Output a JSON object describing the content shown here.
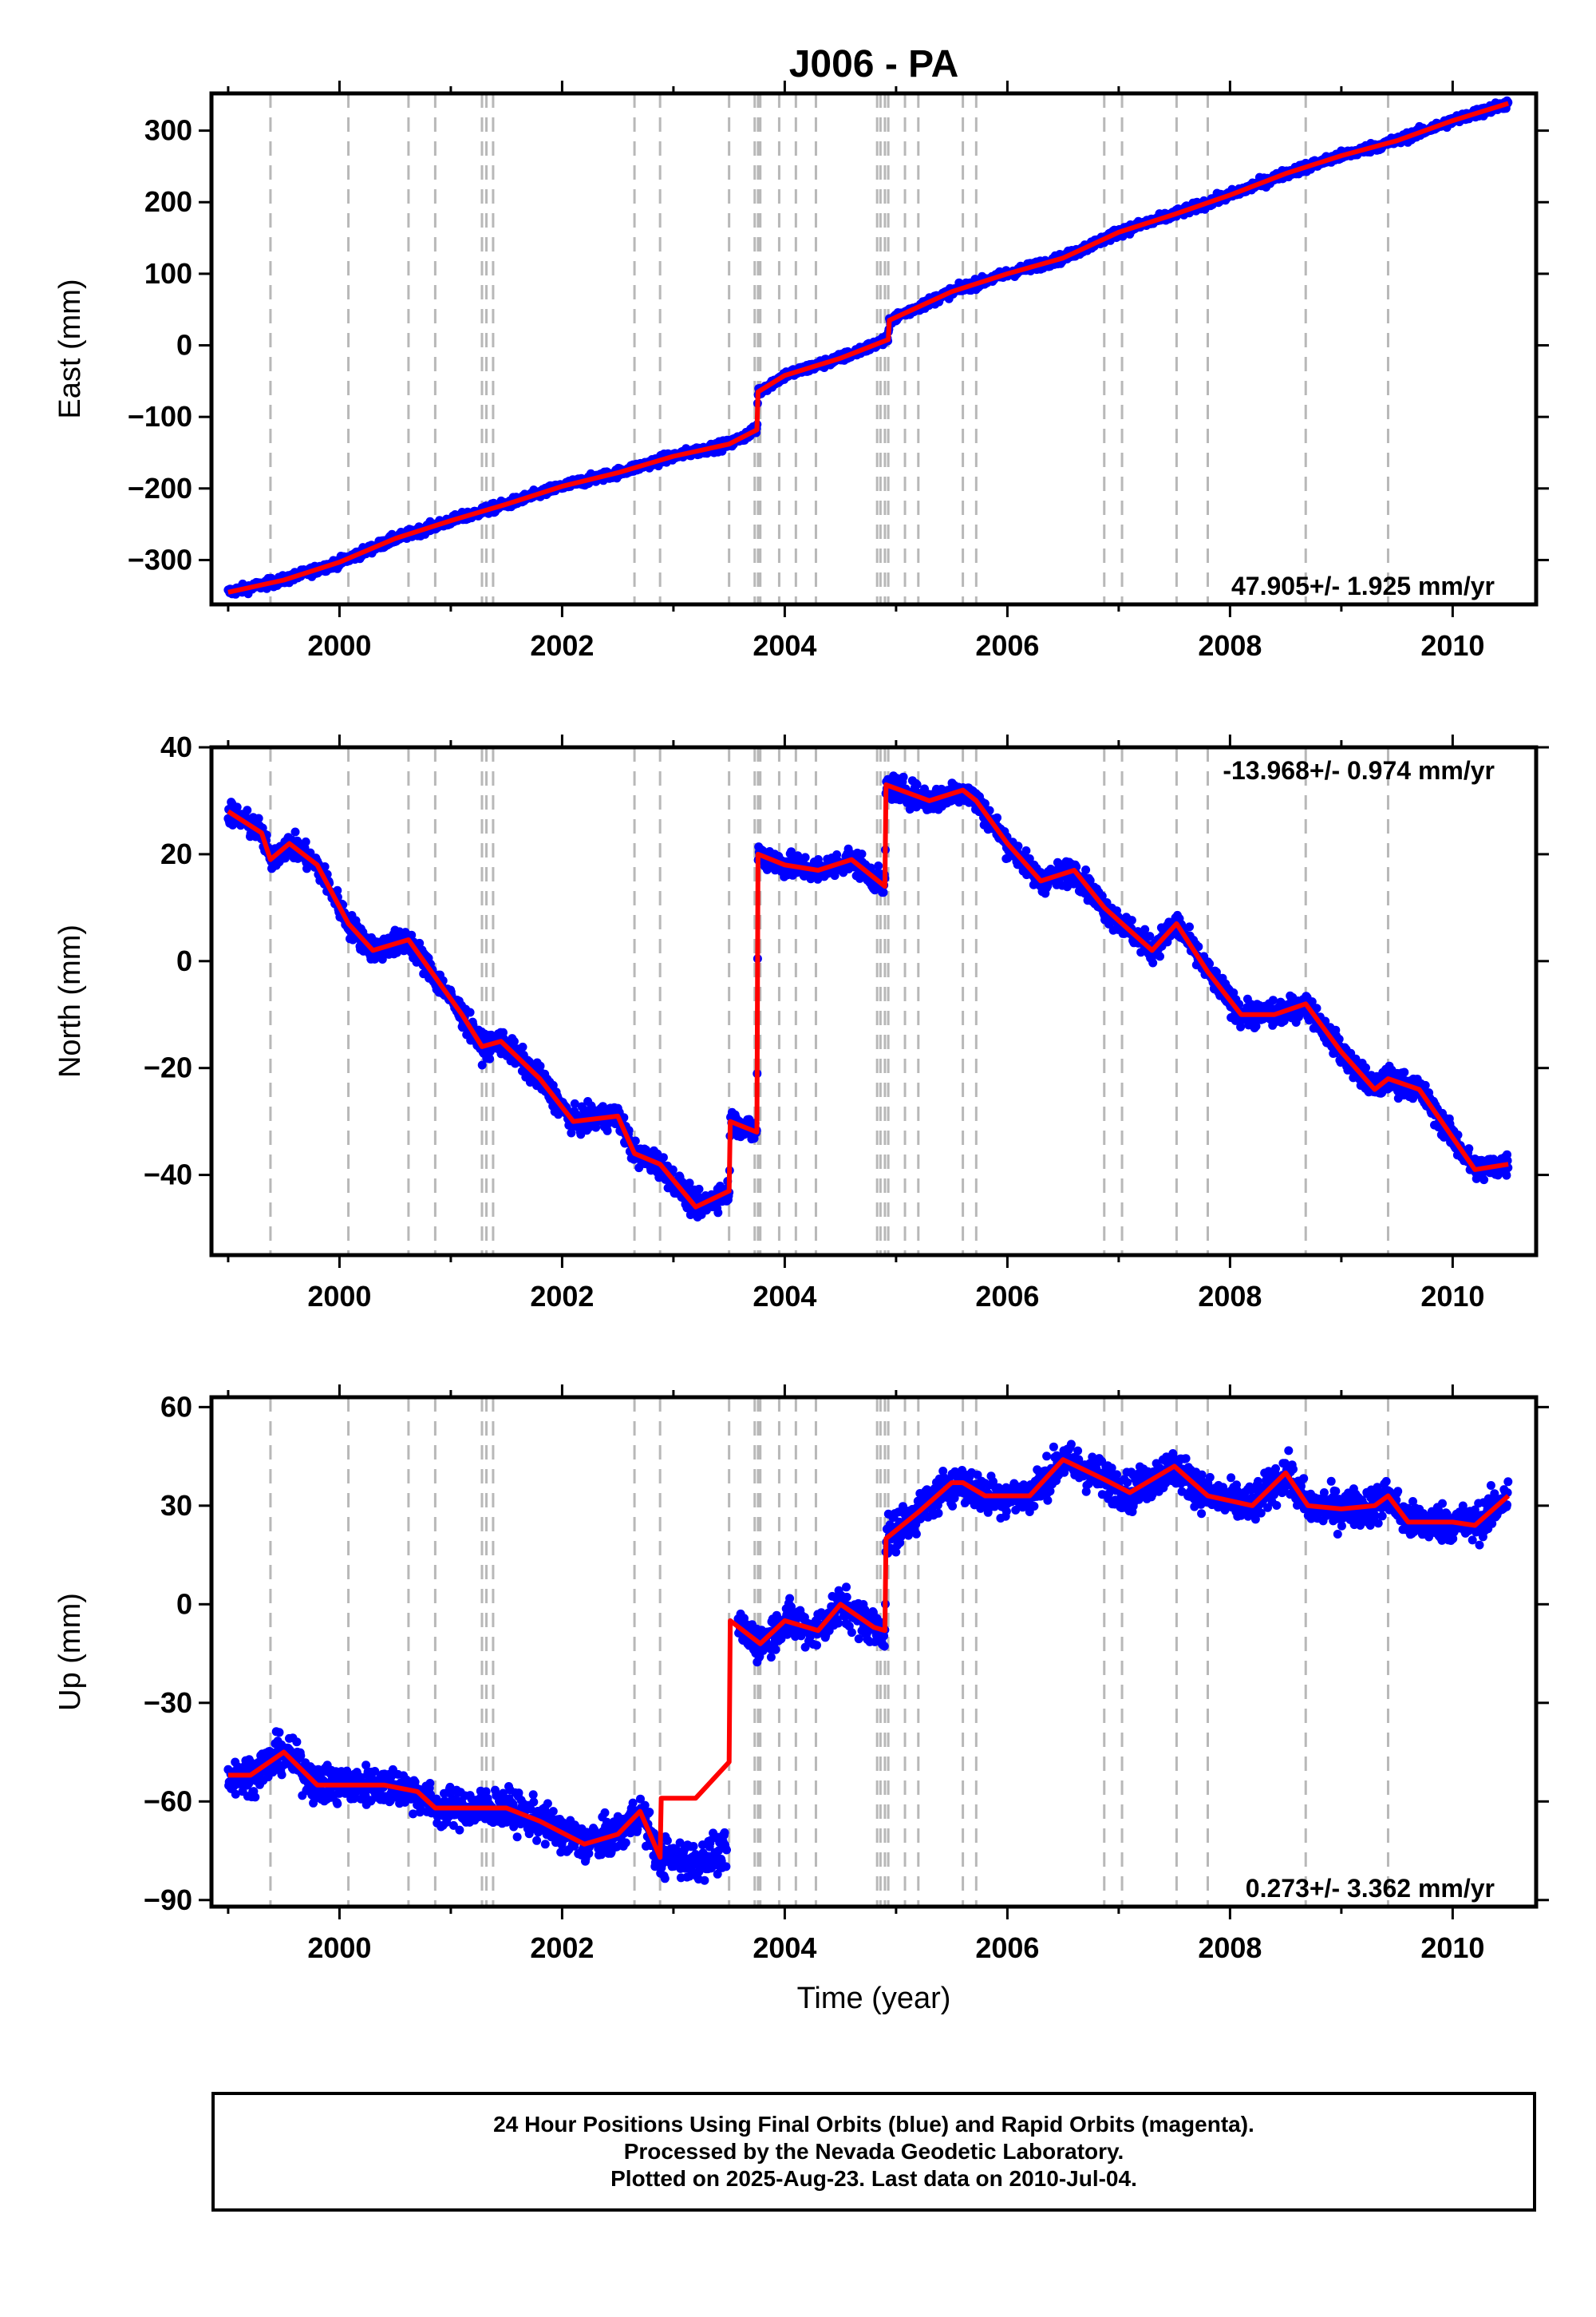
{
  "chart_data": {
    "title": "J006 - PA",
    "xlabel": "Time (year)",
    "x_range": [
      1998.85,
      2010.75
    ],
    "x_ticks": [
      2000,
      2002,
      2004,
      2006,
      2008,
      2010
    ],
    "x_tick_labels": [
      "2000",
      "2002",
      "2004",
      "2006",
      "2008",
      "2010"
    ],
    "grid": false,
    "event_lines": [
      1999.38,
      2000.08,
      2000.62,
      2000.86,
      2001.28,
      2001.32,
      2001.38,
      2002.65,
      2002.88,
      2003.5,
      2003.73,
      2003.76,
      2003.78,
      2003.95,
      2004.1,
      2004.28,
      2004.83,
      2004.86,
      2004.9,
      2004.93,
      2005.08,
      2005.2,
      2005.6,
      2005.72,
      2006.87,
      2007.03,
      2007.52,
      2007.8,
      2008.68,
      2009.42
    ],
    "charts": [
      {
        "type": "scatter",
        "ylabel": "East (mm)",
        "ylim": [
          -362,
          352
        ],
        "y_ticks": [
          -300,
          -200,
          -100,
          0,
          100,
          200,
          300
        ],
        "y_tick_labels": [
          "−300",
          "−200",
          "−100",
          "0",
          "100",
          "200",
          "300"
        ],
        "rate_label": "47.905+/- 1.925 mm/yr",
        "rate_position": "bottom-right",
        "series": [
          {
            "role": "data",
            "color": "#0000ff",
            "x": [
              1999.0,
              1999.5,
              2000.0,
              2000.5,
              2001.0,
              2001.5,
              2002.0,
              2002.5,
              2003.0,
              2003.5,
              2003.75,
              2003.76,
              2004.0,
              2004.5,
              2004.93,
              2004.94,
              2005.5,
              2006.0,
              2006.5,
              2007.0,
              2007.5,
              2008.0,
              2008.5,
              2009.0,
              2009.5,
              2010.0,
              2010.5
            ],
            "y": [
              -345,
              -328,
              -303,
              -270,
              -245,
              -222,
              -197,
              -178,
              -155,
              -138,
              -118,
              -65,
              -42,
              -18,
              8,
              35,
              75,
              100,
              122,
              158,
              183,
              210,
              240,
              265,
              286,
              314,
              338
            ]
          },
          {
            "role": "model",
            "color": "#ff0000",
            "x": [
              1999.0,
              1999.5,
              2000.0,
              2000.5,
              2001.0,
              2001.5,
              2002.0,
              2002.5,
              2003.0,
              2003.5,
              2003.75,
              2003.76,
              2004.0,
              2004.5,
              2004.93,
              2004.94,
              2005.5,
              2006.0,
              2006.5,
              2007.0,
              2007.5,
              2008.0,
              2008.5,
              2009.0,
              2009.5,
              2010.0,
              2010.5
            ],
            "y": [
              -345,
              -328,
              -303,
              -270,
              -245,
              -222,
              -197,
              -178,
              -155,
              -138,
              -118,
              -65,
              -42,
              -18,
              8,
              35,
              75,
              100,
              122,
              158,
              183,
              210,
              240,
              265,
              286,
              314,
              338
            ]
          }
        ]
      },
      {
        "type": "scatter",
        "ylabel": "North (mm)",
        "ylim": [
          -55,
          40
        ],
        "y_ticks": [
          -40,
          -20,
          0,
          20,
          40
        ],
        "y_tick_labels": [
          "−40",
          "−20",
          "0",
          "20",
          "40"
        ],
        "rate_label": "-13.968+/- 0.974 mm/yr",
        "rate_position": "top-right",
        "series": [
          {
            "role": "data",
            "color": "#0000ff",
            "x": [
              1999.0,
              1999.3,
              1999.38,
              1999.55,
              1999.8,
              2000.08,
              2000.3,
              2000.62,
              2000.86,
              2001.1,
              2001.28,
              2001.45,
              2001.8,
              2002.1,
              2002.5,
              2002.65,
              2002.88,
              2003.2,
              2003.5,
              2003.51,
              2003.75,
              2003.76,
              2004.0,
              2004.3,
              2004.6,
              2004.9,
              2004.91,
              2005.3,
              2005.6,
              2005.72,
              2006.0,
              2006.3,
              2006.6,
              2006.87,
              2007.03,
              2007.3,
              2007.52,
              2007.8,
              2008.1,
              2008.4,
              2008.68,
              2009.0,
              2009.3,
              2009.42,
              2009.7,
              2010.0,
              2010.2,
              2010.5
            ],
            "y": [
              28,
              24,
              19,
              22,
              18,
              7,
              2,
              4,
              -3,
              -10,
              -16,
              -15,
              -22,
              -30,
              -29,
              -36,
              -38,
              -46,
              -43,
              -30,
              -32,
              20,
              18,
              17,
              19,
              14,
              33,
              30,
              32,
              30,
              22,
              15,
              17,
              10,
              7,
              2,
              7,
              -2,
              -10,
              -10,
              -8,
              -17,
              -24,
              -22,
              -24,
              -33,
              -39,
              -38
            ]
          },
          {
            "role": "model",
            "color": "#ff0000",
            "x": [
              1999.0,
              1999.3,
              1999.38,
              1999.55,
              1999.8,
              2000.08,
              2000.3,
              2000.62,
              2000.86,
              2001.1,
              2001.28,
              2001.45,
              2001.8,
              2002.1,
              2002.5,
              2002.65,
              2002.88,
              2003.2,
              2003.5,
              2003.51,
              2003.75,
              2003.76,
              2004.0,
              2004.3,
              2004.6,
              2004.9,
              2004.91,
              2005.3,
              2005.6,
              2005.72,
              2006.0,
              2006.3,
              2006.6,
              2006.87,
              2007.03,
              2007.3,
              2007.52,
              2007.8,
              2008.1,
              2008.4,
              2008.68,
              2009.0,
              2009.3,
              2009.42,
              2009.7,
              2010.0,
              2010.2,
              2010.5
            ],
            "y": [
              28,
              24,
              19,
              22,
              18,
              7,
              2,
              4,
              -3,
              -10,
              -16,
              -15,
              -22,
              -30,
              -29,
              -36,
              -38,
              -46,
              -43,
              -30,
              -32,
              20,
              18,
              17,
              19,
              14,
              33,
              30,
              32,
              30,
              22,
              15,
              17,
              10,
              7,
              2,
              7,
              -2,
              -10,
              -10,
              -8,
              -17,
              -24,
              -22,
              -24,
              -33,
              -39,
              -38
            ]
          }
        ]
      },
      {
        "type": "scatter",
        "ylabel": "Up (mm)",
        "ylim": [
          -92,
          63
        ],
        "y_ticks": [
          -90,
          -60,
          -30,
          0,
          30,
          60
        ],
        "y_tick_labels": [
          "−90",
          "−60",
          "−30",
          "0",
          "30",
          "60"
        ],
        "rate_label": "0.273+/- 3.362 mm/yr",
        "rate_position": "bottom-right",
        "series": [
          {
            "role": "data",
            "color": "#0000ff",
            "x": [
              1999.0,
              1999.2,
              1999.5,
              1999.8,
              2000.08,
              2000.4,
              2000.7,
              2000.86,
              2001.2,
              2001.5,
              2001.8,
              2002.2,
              2002.5,
              2002.7,
              2002.88,
              2003.2,
              2003.5,
              2003.51,
              2003.78,
              2004.0,
              2004.3,
              2004.5,
              2004.8,
              2004.9,
              2004.91,
              2005.2,
              2005.5,
              2005.6,
              2005.8,
              2006.2,
              2006.5,
              2006.87,
              2007.1,
              2007.5,
              2007.8,
              2008.2,
              2008.5,
              2008.7,
              2009.0,
              2009.3,
              2009.42,
              2009.6,
              2010.0,
              2010.2,
              2010.5
            ],
            "y": [
              -52,
              -52,
              -45,
              -55,
              -55,
              -55,
              -57,
              -62,
              -62,
              -62,
              -66,
              -73,
              -70,
              -63,
              -77,
              -78,
              -75,
              -5,
              -12,
              -5,
              -8,
              0,
              -7,
              -8,
              20,
              28,
              37,
              37,
              33,
              33,
              44,
              38,
              34,
              42,
              33,
              30,
              40,
              30,
              29,
              30,
              33,
              25,
              25,
              24,
              33
            ]
          },
          {
            "role": "model",
            "color": "#ff0000",
            "x": [
              1999.0,
              1999.2,
              1999.5,
              1999.8,
              2000.08,
              2000.4,
              2000.7,
              2000.86,
              2001.2,
              2001.5,
              2001.8,
              2002.2,
              2002.5,
              2002.7,
              2002.88,
              2002.89,
              2003.2,
              2003.5,
              2003.51,
              2003.78,
              2004.0,
              2004.3,
              2004.5,
              2004.8,
              2004.9,
              2004.91,
              2005.2,
              2005.5,
              2005.6,
              2005.8,
              2006.2,
              2006.5,
              2006.87,
              2007.1,
              2007.5,
              2007.8,
              2008.2,
              2008.5,
              2008.7,
              2009.0,
              2009.3,
              2009.42,
              2009.6,
              2010.0,
              2010.2,
              2010.5
            ],
            "y": [
              -52,
              -52,
              -45,
              -55,
              -55,
              -55,
              -57,
              -62,
              -62,
              -62,
              -66,
              -73,
              -70,
              -63,
              -77,
              -59,
              -59,
              -48,
              -5,
              -12,
              -5,
              -8,
              0,
              -7,
              -8,
              20,
              28,
              37,
              37,
              33,
              33,
              44,
              38,
              34,
              42,
              33,
              30,
              40,
              30,
              29,
              30,
              33,
              25,
              25,
              24,
              33
            ]
          }
        ]
      }
    ]
  },
  "caption": {
    "line1": "24 Hour Positions Using Final Orbits (blue) and Rapid Orbits (magenta).",
    "line2": "Processed by the Nevada Geodetic Laboratory.",
    "line3": "Plotted on 2025-Aug-23. Last data on 2010-Jul-04."
  }
}
